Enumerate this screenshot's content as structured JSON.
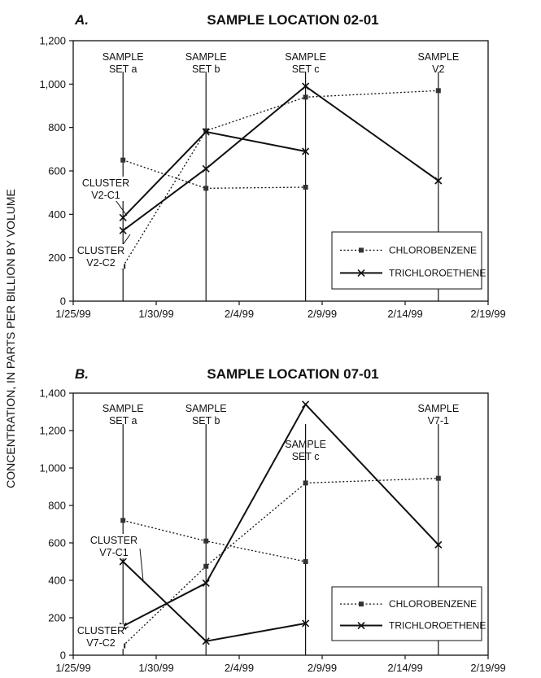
{
  "y_axis_label": "CONCENTRATION, IN PARTS PER BILLION BY VOLUME",
  "chart_data": [
    {
      "type": "line",
      "panel": "A.",
      "title": "SAMPLE LOCATION 02-01",
      "xlabel": "",
      "ylabel": "CONCENTRATION, IN PARTS PER BILLION BY VOLUME",
      "x_ticks": [
        "1/25/99",
        "1/30/99",
        "2/4/99",
        "2/9/99",
        "2/14/99",
        "2/19/99"
      ],
      "xlim": [
        "1999-01-25",
        "1999-02-19"
      ],
      "ylim": [
        0,
        1200
      ],
      "y_ticks": [
        0,
        200,
        400,
        600,
        800,
        1000,
        1200
      ],
      "y_tick_labels": [
        "0",
        "200",
        "400",
        "600",
        "800",
        "1,000",
        "1,200"
      ],
      "sample_sets": [
        {
          "date": "1999-01-28",
          "label": [
            "SAMPLE",
            "SET a"
          ]
        },
        {
          "date": "1999-02-02",
          "label": [
            "SAMPLE",
            "SET b"
          ]
        },
        {
          "date": "1999-02-08",
          "label": [
            "SAMPLE",
            "SET c"
          ]
        },
        {
          "date": "1999-02-16",
          "label": [
            "SAMPLE",
            "V2"
          ]
        }
      ],
      "clusters": [
        {
          "label": [
            "CLUSTER",
            "V2-C1"
          ]
        },
        {
          "label": [
            "CLUSTER",
            "V2-C2"
          ]
        }
      ],
      "legend": {
        "position": "bottom-right",
        "entries": [
          "CHLOROBENZENE",
          "TRICHLOROETHENE"
        ]
      },
      "series": [
        {
          "name": "CHLOROBENZENE",
          "cluster": "V2-C1",
          "style": "dotted",
          "marker": "square",
          "x": [
            "1999-01-28",
            "1999-02-02",
            "1999-02-08"
          ],
          "y": [
            650,
            520,
            525
          ]
        },
        {
          "name": "CHLOROBENZENE",
          "cluster": "V2-C2",
          "style": "dotted",
          "marker": "square",
          "x": [
            "1999-01-28",
            "1999-02-02",
            "1999-02-08",
            "1999-02-16"
          ],
          "y": [
            160,
            785,
            940,
            970
          ]
        },
        {
          "name": "TRICHLOROETHENE",
          "cluster": "V2-C1",
          "style": "solid",
          "marker": "x",
          "x": [
            "1999-01-28",
            "1999-02-02",
            "1999-02-08"
          ],
          "y": [
            385,
            780,
            690
          ]
        },
        {
          "name": "TRICHLOROETHENE",
          "cluster": "V2-C2",
          "style": "solid",
          "marker": "x",
          "x": [
            "1999-01-28",
            "1999-02-02",
            "1999-02-08",
            "1999-02-16"
          ],
          "y": [
            325,
            610,
            990,
            555
          ]
        }
      ]
    },
    {
      "type": "line",
      "panel": "B.",
      "title": "SAMPLE LOCATION 07-01",
      "xlabel": "",
      "ylabel": "CONCENTRATION, IN PARTS PER BILLION BY VOLUME",
      "x_ticks": [
        "1/25/99",
        "1/30/99",
        "2/4/99",
        "2/9/99",
        "2/14/99",
        "2/19/99"
      ],
      "xlim": [
        "1999-01-25",
        "1999-02-19"
      ],
      "ylim": [
        0,
        1400
      ],
      "y_ticks": [
        0,
        200,
        400,
        600,
        800,
        1000,
        1200,
        1400
      ],
      "y_tick_labels": [
        "0",
        "200",
        "400",
        "600",
        "800",
        "1,000",
        "1,200",
        "1,400"
      ],
      "sample_sets": [
        {
          "date": "1999-01-28",
          "label": [
            "SAMPLE",
            "SET a"
          ]
        },
        {
          "date": "1999-02-02",
          "label": [
            "SAMPLE",
            "SET b"
          ]
        },
        {
          "date": "1999-02-08",
          "label": [
            "SAMPLE",
            "SET c"
          ]
        },
        {
          "date": "1999-02-16",
          "label": [
            "SAMPLE",
            "V7-1"
          ]
        }
      ],
      "clusters": [
        {
          "label": [
            "CLUSTER",
            "V7-C1"
          ]
        },
        {
          "label": [
            "CLUSTER",
            "V7-C2"
          ]
        }
      ],
      "legend": {
        "position": "bottom-right",
        "entries": [
          "CHLOROBENZENE",
          "TRICHLOROETHENE"
        ]
      },
      "series": [
        {
          "name": "CHLOROBENZENE",
          "cluster": "V7-C1",
          "style": "dotted",
          "marker": "square",
          "x": [
            "1999-01-28",
            "1999-02-02",
            "1999-02-08"
          ],
          "y": [
            720,
            610,
            500
          ]
        },
        {
          "name": "CHLOROBENZENE",
          "cluster": "V7-C2",
          "style": "dotted",
          "marker": "square",
          "x": [
            "1999-01-28",
            "1999-02-02",
            "1999-02-08",
            "1999-02-16"
          ],
          "y": [
            50,
            475,
            920,
            945
          ]
        },
        {
          "name": "TRICHLOROETHENE",
          "cluster": "V7-C1",
          "style": "solid",
          "marker": "x",
          "x": [
            "1999-01-28",
            "1999-02-02",
            "1999-02-08"
          ],
          "y": [
            500,
            75,
            170
          ]
        },
        {
          "name": "TRICHLOROETHENE",
          "cluster": "V7-C2",
          "style": "solid",
          "marker": "x",
          "x": [
            "1999-01-28",
            "1999-02-02",
            "1999-02-08",
            "1999-02-16"
          ],
          "y": [
            155,
            385,
            1340,
            590
          ]
        }
      ]
    }
  ]
}
